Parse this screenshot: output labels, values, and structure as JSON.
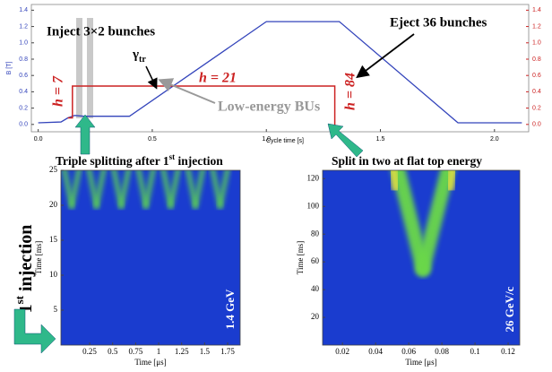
{
  "charts": [
    {
      "type": "line",
      "xlabel": "Cycle time [s]",
      "ylabel": "B [T]",
      "xlim": [
        -0.03,
        2.15
      ],
      "ylim": [
        -0.09,
        1.47
      ],
      "xticks": [
        {
          "value": 0,
          "label": "0.0"
        },
        0.5,
        {
          "value": 1,
          "label": "1.0"
        },
        1.5,
        {
          "value": 2,
          "label": "2.0"
        }
      ],
      "yticks": [
        {
          "value": 0,
          "label": "0.0"
        },
        0.2,
        0.4,
        0.6,
        0.8,
        {
          "value": 1,
          "label": "1.0"
        },
        1.2,
        1.4
      ],
      "series": [
        {
          "color": "#3344bb",
          "x": [
            0,
            0.1,
            0.13,
            0.16,
            0.2,
            0.4,
            1.0,
            1.32,
            1.84,
            2.12
          ],
          "values": [
            0.02,
            0.03,
            0.08,
            0.11,
            0.1,
            0.1,
            1.26,
            1.26,
            0.02,
            0.02
          ]
        },
        {
          "color": "#cc2222",
          "x": [
            0.13,
            0.15,
            0.15,
            1.3,
            1.3
          ],
          "values": [
            0.08,
            0.08,
            0.47,
            0.47,
            -0.01
          ]
        }
      ],
      "annotations": {
        "inject": "Inject 3×2 bunches",
        "gamma": "γ",
        "gamma_sub": "tr",
        "h21": "h = 21",
        "h7": "h = 7",
        "h84": "h = 84",
        "low_energy": "Low-energy BUs",
        "eject": "Eject 36 bunches",
        "triple": {
          "main": "Triple splitting after 1",
          "sup": "st",
          "rest": " injection"
        },
        "split": "Split in two at flat top energy",
        "first_injection": {
          "main": "1",
          "sup": "st",
          "rest": " injection"
        }
      }
    },
    {
      "type": "heatmap",
      "xlabel": "Time [μs]",
      "ylabel": "Time [ms]",
      "annotation": "1.4 GeV",
      "xlim": [
        -0.062,
        1.886
      ],
      "ylim": [
        0,
        25
      ],
      "xticks": [
        0.25,
        0.5,
        0.75,
        1,
        1.25,
        1.5,
        1.75
      ],
      "yticks": [
        5,
        10,
        15,
        20,
        25
      ]
    },
    {
      "type": "heatmap",
      "xlabel": "Time [μs]",
      "ylabel": "Time [ms]",
      "annotation": "26 GeV/c",
      "xlim": [
        0.008,
        0.127
      ],
      "ylim": [
        0,
        126
      ],
      "xticks": [
        0.02,
        0.04,
        0.06,
        0.08,
        0.1,
        0.12
      ],
      "yticks": [
        20,
        40,
        60,
        80,
        100,
        120
      ]
    }
  ]
}
